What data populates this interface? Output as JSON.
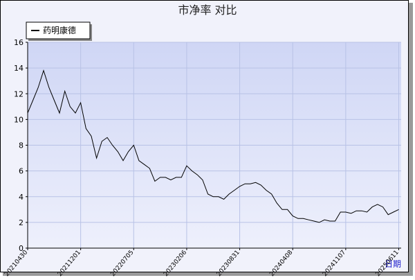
{
  "chart_data": {
    "type": "line",
    "title": "市净率  对比",
    "x_label": "日期",
    "categories": [
      "20210430",
      null,
      null,
      null,
      null,
      null,
      null,
      null,
      null,
      null,
      "20211201",
      null,
      null,
      null,
      null,
      null,
      null,
      null,
      null,
      null,
      "20220705",
      null,
      null,
      null,
      null,
      null,
      null,
      null,
      null,
      null,
      "20230206",
      null,
      null,
      null,
      null,
      null,
      null,
      null,
      null,
      null,
      "20230831",
      null,
      null,
      null,
      null,
      null,
      null,
      null,
      null,
      null,
      "20240408",
      null,
      null,
      null,
      null,
      null,
      null,
      null,
      null,
      null,
      "20241107",
      null,
      null,
      null,
      null,
      null,
      null,
      null,
      null,
      null,
      "20250611"
    ],
    "series": [
      {
        "name": "药明康德",
        "color": "#000000",
        "values": [
          10.5,
          11.5,
          12.5,
          13.8,
          12.5,
          11.5,
          10.5,
          12.2,
          11.0,
          10.5,
          11.3,
          9.3,
          8.7,
          7.0,
          8.3,
          8.6,
          8.0,
          7.5,
          6.8,
          7.5,
          8.0,
          6.8,
          6.5,
          6.2,
          5.2,
          5.5,
          5.5,
          5.3,
          5.5,
          5.5,
          6.4,
          6.0,
          5.7,
          5.3,
          4.2,
          4.0,
          4.0,
          3.8,
          4.2,
          4.5,
          4.8,
          5.0,
          5.0,
          5.1,
          4.9,
          4.5,
          4.2,
          3.5,
          3.0,
          3.0,
          2.5,
          2.3,
          2.3,
          2.2,
          2.1,
          2.0,
          2.2,
          2.1,
          2.1,
          2.8,
          2.8,
          2.7,
          2.9,
          2.9,
          2.8,
          3.2,
          3.4,
          3.2,
          2.6,
          2.8,
          3.0
        ]
      }
    ],
    "ylim": [
      0,
      16
    ],
    "yticks": [
      0,
      2,
      4,
      6,
      8,
      10,
      12,
      14,
      16
    ],
    "grid": true
  }
}
